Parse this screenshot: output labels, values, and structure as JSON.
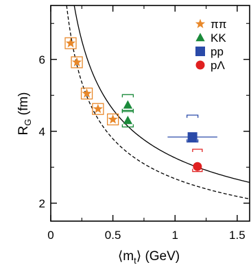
{
  "chart_data": {
    "type": "scatter",
    "title": "",
    "xlabel": {
      "main": "⟨m",
      "sub": "t",
      "tail": "⟩ (GeV)"
    },
    "ylabel": {
      "main": "R",
      "sub": "G",
      "tail": " (fm)"
    },
    "xlim": [
      0,
      1.6
    ],
    "ylim": [
      1.5,
      7.5
    ],
    "x_ticks": [
      0,
      0.5,
      1,
      1.5
    ],
    "x_tick_labels": [
      "0",
      "0.5",
      "1",
      "1.5"
    ],
    "y_ticks": [
      2,
      4,
      6
    ],
    "y_tick_labels": [
      "2",
      "4",
      "6"
    ],
    "grid": false,
    "legend_position": "top-right",
    "series": [
      {
        "name": "ππ",
        "marker": "star",
        "color": "#e8882a",
        "points": [
          {
            "x": 0.16,
            "y": 6.45
          },
          {
            "x": 0.21,
            "y": 5.92
          },
          {
            "x": 0.29,
            "y": 5.05
          },
          {
            "x": 0.38,
            "y": 4.62
          },
          {
            "x": 0.5,
            "y": 4.33
          }
        ]
      },
      {
        "name": "KK",
        "marker": "triangle",
        "color": "#1a8a3a",
        "points": [
          {
            "x": 0.62,
            "y": 4.73,
            "sys_low": 4.55,
            "sys_high": 5.02
          },
          {
            "x": 0.62,
            "y": 4.3,
            "sys_low": 4.12,
            "sys_high": 4.58
          }
        ]
      },
      {
        "name": "pp",
        "marker": "square",
        "color": "#2a4aa8",
        "points": [
          {
            "x": 1.14,
            "y": 3.84,
            "x_err": 0.2,
            "sys_low": 3.7,
            "sys_high": 4.45
          }
        ]
      },
      {
        "name": "pΛ",
        "marker": "circle",
        "color": "#e02020",
        "points": [
          {
            "x": 1.18,
            "y": 3.02,
            "sys_low": 2.88,
            "sys_high": 3.5
          }
        ]
      }
    ],
    "curves": [
      {
        "style": "solid",
        "form": "a/sqrt(x)",
        "a": 3.26
      },
      {
        "style": "dashed",
        "form": "a/sqrt(x)",
        "a": 2.68
      }
    ]
  }
}
